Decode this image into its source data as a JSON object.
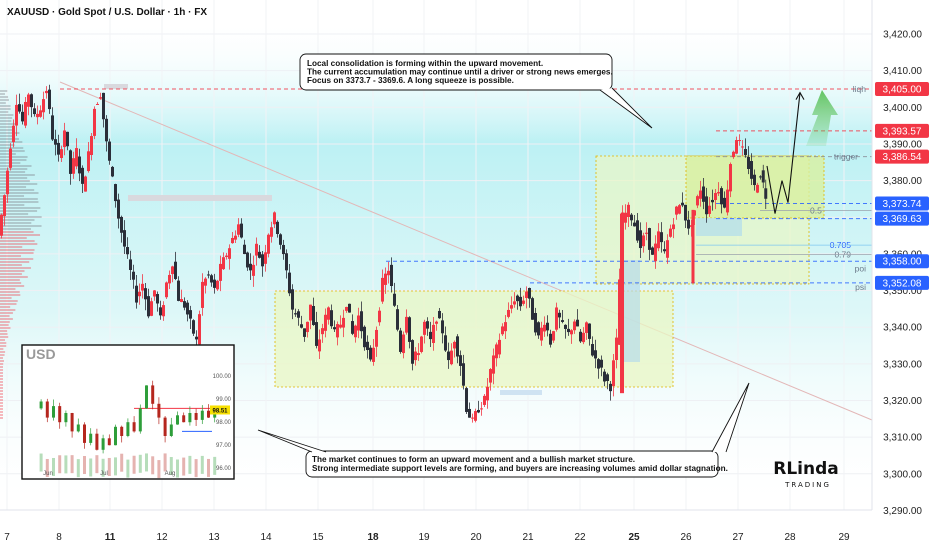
{
  "header": {
    "title": "XAUUSD · Gold Spot / U.S. Dollar · 1h · FX"
  },
  "colors": {
    "up": "#f23645",
    "down": "#2a2e39",
    "band": "#9fe8ef",
    "zone": "#eaf7c4",
    "zone_border": "#e0b400",
    "level_red": "#f23645",
    "level_blue": "#2962ff",
    "tag_blue": "#2962ff",
    "tag_red": "#f23645",
    "arrow_green": "#5cc25c"
  },
  "chart_data": {
    "type": "candlestick",
    "x_ticks": [
      {
        "label": "7",
        "bold": false
      },
      {
        "label": "8",
        "bold": false
      },
      {
        "label": "11",
        "bold": true
      },
      {
        "label": "12",
        "bold": false
      },
      {
        "label": "13",
        "bold": false
      },
      {
        "label": "14",
        "bold": false
      },
      {
        "label": "15",
        "bold": false
      },
      {
        "label": "18",
        "bold": true
      },
      {
        "label": "19",
        "bold": false
      },
      {
        "label": "20",
        "bold": false
      },
      {
        "label": "21",
        "bold": false
      },
      {
        "label": "22",
        "bold": false
      },
      {
        "label": "25",
        "bold": true
      },
      {
        "label": "26",
        "bold": false
      },
      {
        "label": "27",
        "bold": false
      },
      {
        "label": "28",
        "bold": false
      },
      {
        "label": "29",
        "bold": false
      }
    ],
    "y_ticks": [
      "3,420.00",
      "3,410.00",
      "3,400.00",
      "3,390.00",
      "3,380.00",
      "3,370.00",
      "3,360.00",
      "3,350.00",
      "3,340.00",
      "3,330.00",
      "3,320.00",
      "3,310.00",
      "3,300.00",
      "3,290.00"
    ],
    "y_tick_values": [
      3420,
      3410,
      3400,
      3390,
      3380,
      3370,
      3360,
      3350,
      3340,
      3330,
      3320,
      3310,
      3300,
      3290
    ],
    "ylim": [
      3284,
      3427
    ],
    "price_path": [
      [
        0,
        3365
      ],
      [
        6,
        3376
      ],
      [
        12,
        3390
      ],
      [
        18,
        3402
      ],
      [
        24,
        3396
      ],
      [
        30,
        3404
      ],
      [
        36,
        3397
      ],
      [
        42,
        3400
      ],
      [
        48,
        3405
      ],
      [
        54,
        3392
      ],
      [
        60,
        3386
      ],
      [
        66,
        3394
      ],
      [
        72,
        3382
      ],
      [
        78,
        3388
      ],
      [
        84,
        3378
      ],
      [
        90,
        3387
      ],
      [
        96,
        3400
      ],
      [
        102,
        3404
      ],
      [
        108,
        3390
      ],
      [
        114,
        3380
      ],
      [
        120,
        3370
      ],
      [
        126,
        3362
      ],
      [
        132,
        3355
      ],
      [
        138,
        3348
      ],
      [
        144,
        3352
      ],
      [
        150,
        3344
      ],
      [
        156,
        3350
      ],
      [
        162,
        3342
      ],
      [
        168,
        3352
      ],
      [
        174,
        3358
      ],
      [
        180,
        3348
      ],
      [
        186,
        3346
      ],
      [
        192,
        3341
      ],
      [
        198,
        3336
      ],
      [
        204,
        3352
      ],
      [
        210,
        3354
      ],
      [
        216,
        3350
      ],
      [
        222,
        3356
      ],
      [
        228,
        3360
      ],
      [
        234,
        3364
      ],
      [
        240,
        3368
      ],
      [
        246,
        3360
      ],
      [
        252,
        3355
      ],
      [
        258,
        3362
      ],
      [
        264,
        3357
      ],
      [
        270,
        3366
      ],
      [
        276,
        3370
      ],
      [
        282,
        3363
      ],
      [
        288,
        3355
      ],
      [
        294,
        3345
      ],
      [
        300,
        3342
      ],
      [
        306,
        3338
      ],
      [
        312,
        3346
      ],
      [
        318,
        3334
      ],
      [
        324,
        3340
      ],
      [
        330,
        3345
      ],
      [
        336,
        3338
      ],
      [
        342,
        3341
      ],
      [
        348,
        3347
      ],
      [
        354,
        3338
      ],
      [
        360,
        3343
      ],
      [
        366,
        3336
      ],
      [
        372,
        3330
      ],
      [
        378,
        3340
      ],
      [
        384,
        3352
      ],
      [
        390,
        3356
      ],
      [
        396,
        3345
      ],
      [
        402,
        3334
      ],
      [
        408,
        3344
      ],
      [
        414,
        3330
      ],
      [
        420,
        3334
      ],
      [
        426,
        3341
      ],
      [
        432,
        3336
      ],
      [
        438,
        3343
      ],
      [
        444,
        3339
      ],
      [
        450,
        3330
      ],
      [
        456,
        3337
      ],
      [
        462,
        3330
      ],
      [
        468,
        3318
      ],
      [
        474,
        3314
      ],
      [
        480,
        3318
      ],
      [
        486,
        3320
      ],
      [
        492,
        3328
      ],
      [
        498,
        3334
      ],
      [
        504,
        3340
      ],
      [
        510,
        3344
      ],
      [
        516,
        3348
      ],
      [
        522,
        3346
      ],
      [
        528,
        3350
      ],
      [
        534,
        3343
      ],
      [
        540,
        3337
      ],
      [
        546,
        3342
      ],
      [
        552,
        3336
      ],
      [
        558,
        3344
      ],
      [
        564,
        3340
      ],
      [
        570,
        3338
      ],
      [
        576,
        3342
      ],
      [
        582,
        3336
      ],
      [
        588,
        3340
      ],
      [
        594,
        3333
      ],
      [
        600,
        3330
      ],
      [
        606,
        3326
      ],
      [
        612,
        3324
      ],
      [
        618,
        3336
      ],
      [
        624,
        3370
      ],
      [
        630,
        3372
      ],
      [
        636,
        3368
      ],
      [
        642,
        3362
      ],
      [
        648,
        3366
      ],
      [
        654,
        3359
      ],
      [
        660,
        3365
      ],
      [
        666,
        3360
      ],
      [
        672,
        3367
      ],
      [
        678,
        3372
      ],
      [
        684,
        3374
      ],
      [
        690,
        3366
      ],
      [
        696,
        3372
      ],
      [
        702,
        3378
      ],
      [
        708,
        3372
      ],
      [
        714,
        3375
      ],
      [
        720,
        3378
      ],
      [
        726,
        3372
      ],
      [
        732,
        3385
      ],
      [
        738,
        3392
      ],
      [
        744,
        3388
      ],
      [
        750,
        3384
      ],
      [
        756,
        3378
      ],
      [
        762,
        3382
      ],
      [
        767,
        3376
      ]
    ],
    "projection_path": [
      [
        767,
        3384
      ],
      [
        775,
        3371
      ],
      [
        782,
        3380
      ],
      [
        788,
        3374
      ],
      [
        800,
        3404
      ]
    ],
    "levels": [
      {
        "label": "3,405.00",
        "value": 3405.0,
        "color": "red",
        "tag": "red"
      },
      {
        "label": "3,393.57",
        "value": 3393.57,
        "color": "red",
        "tag": "red"
      },
      {
        "label": "3,386.54",
        "value": 3386.54,
        "color": "grey",
        "tag": "red"
      },
      {
        "label": "3,373.74",
        "value": 3373.74,
        "color": "blue",
        "tag": "blue"
      },
      {
        "label": "3,369.63",
        "value": 3369.63,
        "color": "blue",
        "tag": "blue"
      },
      {
        "label": "3,358.00",
        "value": 3358.0,
        "color": "blue",
        "tag": "blue"
      },
      {
        "label": "3,352.08",
        "value": 3352.08,
        "color": "blue",
        "tag": "blue"
      }
    ],
    "level_labels": {
      "liq": "liqh",
      "trigger": "trigger",
      "fib_05": "0.5",
      "fib_0705": "0.705",
      "fib_079": "0.79",
      "poi": "poi",
      "psi": "psi"
    },
    "fib_values": {
      "f05": 3371.8,
      "f0705": 3362.4,
      "f079": 3359.8
    },
    "current_price": 3376,
    "annotations": {
      "top": [
        "Local consolidation is forming within the upward movement.",
        "The current accumulation may continue until a driver or strong news emerges.",
        "Focus on 3373.7 - 3369.6. A long squeeze is possible."
      ],
      "bottom": [
        "The market continues to form an upward movement and a bullish market structure.",
        "Strong intermediate support levels are forming, and buyers are increasing volumes amid dollar stagnation."
      ]
    },
    "inset": {
      "title": "USD",
      "y_ticks": [
        "100.00",
        "99.00",
        "98.00",
        "97.00",
        "96.00"
      ],
      "y_tick_values": [
        100,
        99,
        98,
        97,
        96
      ],
      "price_tag": "98.51",
      "price_value": 98.51,
      "x_ticks": [
        "Jun",
        "Jul",
        "Aug"
      ],
      "red_level": 98.6,
      "blue_level": 97.6,
      "path": [
        [
          0,
          98.6
        ],
        [
          4,
          98.9
        ],
        [
          8,
          98.2
        ],
        [
          12,
          98.7
        ],
        [
          16,
          98.0
        ],
        [
          20,
          98.4
        ],
        [
          24,
          97.6
        ],
        [
          28,
          97.9
        ],
        [
          32,
          97.1
        ],
        [
          36,
          97.5
        ],
        [
          40,
          96.8
        ],
        [
          44,
          97.3
        ],
        [
          48,
          97.0
        ],
        [
          52,
          97.8
        ],
        [
          56,
          97.4
        ],
        [
          60,
          98.0
        ],
        [
          64,
          97.6
        ],
        [
          68,
          98.6
        ],
        [
          72,
          99.6
        ],
        [
          76,
          98.8
        ],
        [
          80,
          98.2
        ],
        [
          84,
          97.4
        ],
        [
          88,
          97.9
        ],
        [
          92,
          98.3
        ],
        [
          96,
          98.0
        ],
        [
          100,
          98.4
        ],
        [
          104,
          98.1
        ],
        [
          108,
          98.5
        ],
        [
          112,
          98.2
        ],
        [
          116,
          98.5
        ]
      ]
    },
    "watermark": {
      "main": "RLinda",
      "sub": "TRADING"
    }
  }
}
